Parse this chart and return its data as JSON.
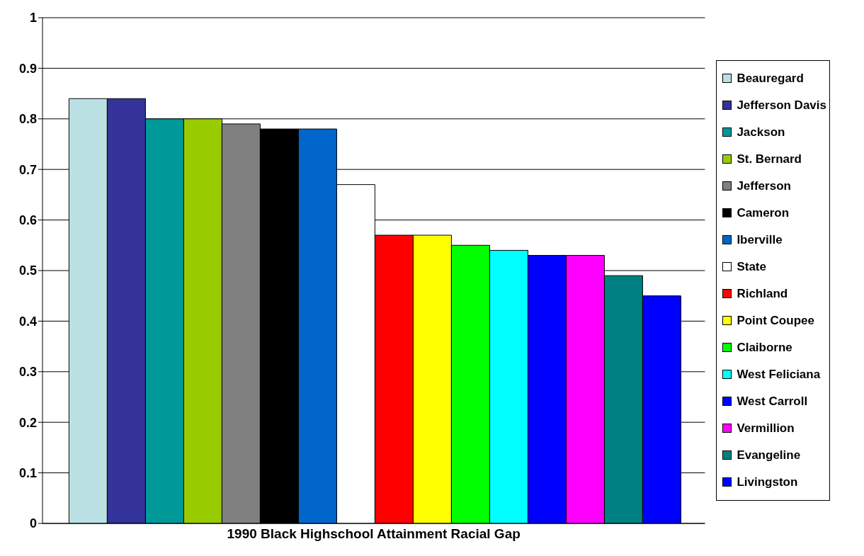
{
  "chart_data": {
    "type": "bar",
    "categories": [
      "1990 Black Highschool Attainment Racial Gap"
    ],
    "series": [
      {
        "name": "Beauregard",
        "color": "#bbe0e3",
        "values": [
          0.84
        ]
      },
      {
        "name": "Jefferson Davis",
        "color": "#333399",
        "values": [
          0.84
        ]
      },
      {
        "name": "Jackson",
        "color": "#009999",
        "values": [
          0.8
        ]
      },
      {
        "name": "St. Bernard",
        "color": "#99cc00",
        "values": [
          0.8
        ]
      },
      {
        "name": "Jefferson",
        "color": "#808080",
        "values": [
          0.79
        ]
      },
      {
        "name": "Cameron",
        "color": "#000000",
        "values": [
          0.78
        ]
      },
      {
        "name": "Iberville",
        "color": "#0066cc",
        "values": [
          0.78
        ]
      },
      {
        "name": "State",
        "color": "#ffffff",
        "values": [
          0.67
        ]
      },
      {
        "name": "Richland",
        "color": "#ff0000",
        "values": [
          0.57
        ]
      },
      {
        "name": "Point Coupee",
        "color": "#ffff00",
        "values": [
          0.57
        ]
      },
      {
        "name": "Claiborne",
        "color": "#00ff00",
        "values": [
          0.55
        ]
      },
      {
        "name": "West Feliciana",
        "color": "#00ffff",
        "values": [
          0.54
        ]
      },
      {
        "name": "West Carroll",
        "color": "#0000ff",
        "values": [
          0.53
        ]
      },
      {
        "name": "Vermillion",
        "color": "#ff00ff",
        "values": [
          0.53
        ]
      },
      {
        "name": "Evangeline",
        "color": "#008080",
        "values": [
          0.49
        ]
      },
      {
        "name": "Livingston",
        "color": "#0000ff",
        "values": [
          0.45
        ]
      }
    ],
    "ylim": [
      0,
      1
    ],
    "yticks": [
      0,
      0.1,
      0.2,
      0.3,
      0.4,
      0.5,
      0.6,
      0.7,
      0.8,
      0.9,
      1
    ],
    "grid": "y",
    "legend": "right"
  }
}
